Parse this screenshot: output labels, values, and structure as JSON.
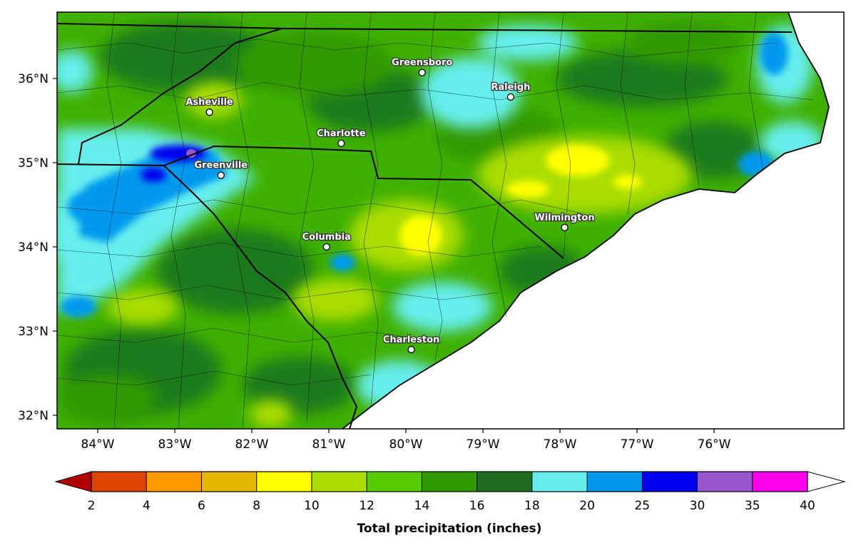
{
  "map": {
    "lat_labels": [
      {
        "lat": 36,
        "text": "36°N"
      },
      {
        "lat": 35,
        "text": "35°N"
      },
      {
        "lat": 34,
        "text": "34°N"
      },
      {
        "lat": 33,
        "text": "33°N"
      },
      {
        "lat": 32,
        "text": "32°N"
      }
    ],
    "lon_labels": [
      {
        "lon": -84,
        "text": "84°W"
      },
      {
        "lon": -83,
        "text": "83°W"
      },
      {
        "lon": -82,
        "text": "82°W"
      },
      {
        "lon": -81,
        "text": "81°W"
      },
      {
        "lon": -80,
        "text": "80°W"
      },
      {
        "lon": -79,
        "text": "79°W"
      },
      {
        "lon": -78,
        "text": "78°W"
      },
      {
        "lon": -77,
        "text": "77°W"
      },
      {
        "lon": -76,
        "text": "76°W"
      }
    ],
    "cities": [
      {
        "name": "Asheville",
        "lon": -82.55,
        "lat": 35.6
      },
      {
        "name": "Greensboro",
        "lon": -79.79,
        "lat": 36.07
      },
      {
        "name": "Raleigh",
        "lon": -78.64,
        "lat": 35.78
      },
      {
        "name": "Charlotte",
        "lon": -80.84,
        "lat": 35.23
      },
      {
        "name": "Greenville",
        "lon": -82.4,
        "lat": 34.85
      },
      {
        "name": "Columbia",
        "lon": -81.03,
        "lat": 34.0
      },
      {
        "name": "Wilmington",
        "lon": -77.94,
        "lat": 34.23
      },
      {
        "name": "Charleston",
        "lon": -79.93,
        "lat": 32.78
      }
    ]
  },
  "colorbar": {
    "title": "Total precipitation (inches)",
    "tick_labels": [
      "2",
      "4",
      "6",
      "8",
      "10",
      "12",
      "14",
      "16",
      "18",
      "20",
      "25",
      "30",
      "35",
      "40"
    ],
    "below_color": "#b00000",
    "above_color": "#ffffff",
    "colors": [
      "#dd4400",
      "#ff9900",
      "#e5b800",
      "#ffff00",
      "#aadd00",
      "#55cc00",
      "#339900",
      "#1f6e1f",
      "#66eeee",
      "#0099ee",
      "#0000ee",
      "#9955cc",
      "#ff00ee"
    ]
  }
}
